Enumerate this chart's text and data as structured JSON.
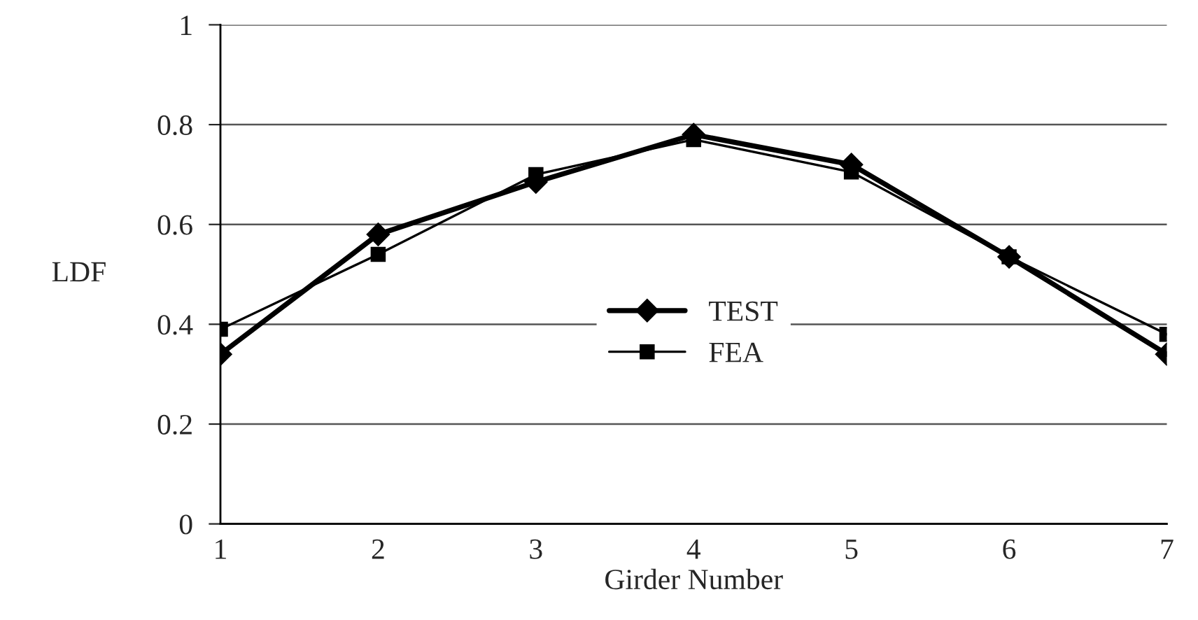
{
  "chart_data": {
    "type": "line",
    "xlabel": "Girder Number",
    "ylabel": "LDF",
    "x": [
      1,
      2,
      3,
      4,
      5,
      6,
      7
    ],
    "series": [
      {
        "name": "TEST",
        "color": "#000000",
        "values": [
          0.34,
          0.58,
          0.685,
          0.78,
          0.72,
          0.535,
          0.34
        ],
        "marker": "diamond"
      },
      {
        "name": "FEA",
        "color": "#000000",
        "values": [
          0.39,
          0.54,
          0.7,
          0.77,
          0.705,
          0.535,
          0.38
        ],
        "marker": "square"
      }
    ],
    "xlim": [
      1,
      7
    ],
    "xticks": [
      1,
      2,
      3,
      4,
      5,
      6,
      7
    ],
    "ylim": [
      0,
      1
    ],
    "yticks": [
      0,
      0.2,
      0.4,
      0.6,
      0.8,
      1
    ],
    "grid": "y",
    "legend": "center",
    "line_style": "solid"
  }
}
